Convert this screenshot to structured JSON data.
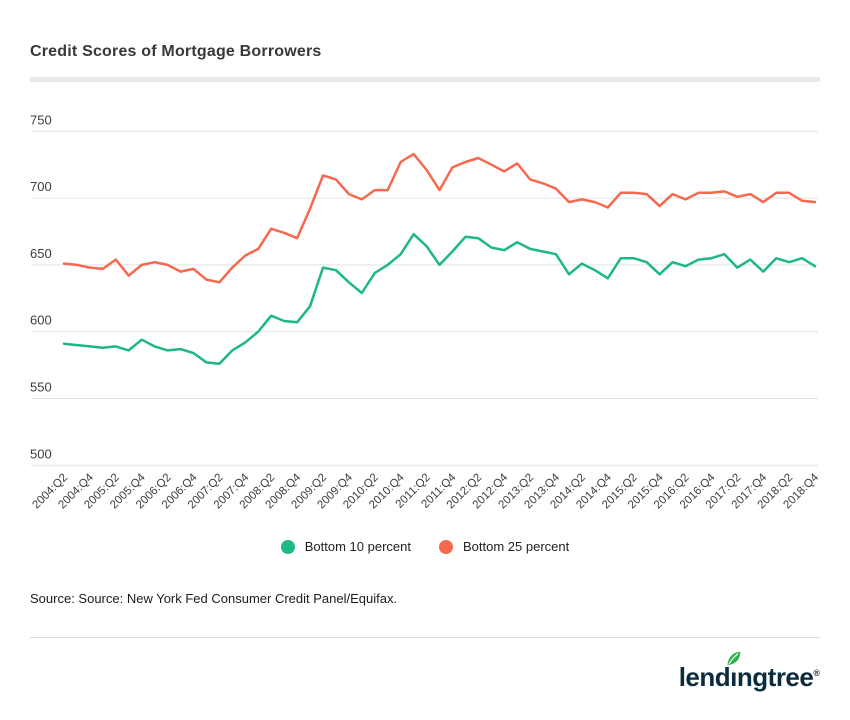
{
  "header": {
    "title": "Credit Scores of Mortgage Borrowers"
  },
  "chart_data": {
    "type": "line",
    "title": "Credit Scores of Mortgage Borrowers",
    "categories": [
      "2004:Q2",
      "2004:Q3",
      "2004:Q4",
      "2005:Q1",
      "2005:Q2",
      "2005:Q3",
      "2005:Q4",
      "2006:Q1",
      "2006:Q2",
      "2006:Q3",
      "2006:Q4",
      "2007:Q1",
      "2007:Q2",
      "2007:Q3",
      "2007:Q4",
      "2008:Q1",
      "2008:Q2",
      "2008:Q3",
      "2008:Q4",
      "2009:Q1",
      "2009:Q2",
      "2009:Q3",
      "2009:Q4",
      "2010:Q1",
      "2010:Q2",
      "2010:Q3",
      "2010:Q4",
      "2011:Q1",
      "2011:Q2",
      "2011:Q3",
      "2011:Q4",
      "2012:Q1",
      "2012:Q2",
      "2012:Q3",
      "2012:Q4",
      "2013:Q1",
      "2013:Q2",
      "2013:Q3",
      "2013:Q4",
      "2014:Q1",
      "2014:Q2",
      "2014:Q3",
      "2014:Q4",
      "2015:Q1",
      "2015:Q2",
      "2015:Q3",
      "2015:Q4",
      "2016:Q1",
      "2016:Q2",
      "2016:Q3",
      "2016:Q4",
      "2017:Q1",
      "2017:Q2",
      "2017:Q3",
      "2017:Q4",
      "2018:Q1",
      "2018:Q2",
      "2018:Q3",
      "2018:Q4"
    ],
    "x_tick_labels": [
      "2004:Q2",
      "2004:Q4",
      "2005:Q2",
      "2005:Q4",
      "2006:Q2",
      "2006:Q4",
      "2007:Q2",
      "2007:Q4",
      "2008:Q2",
      "2008:Q4",
      "2009:Q2",
      "2009:Q4",
      "2010:Q2",
      "2010:Q4",
      "2011:Q2",
      "2011:Q4",
      "2012:Q2",
      "2012:Q4",
      "2013:Q2",
      "2013:Q4",
      "2014:Q2",
      "2014:Q4",
      "2015:Q2",
      "2015:Q4",
      "2016:Q2",
      "2016:Q4",
      "2017:Q2",
      "2017:Q4",
      "2018:Q2",
      "2018:Q4"
    ],
    "series": [
      {
        "name": "Bottom 10 percent",
        "color": "#1db981",
        "values": [
          591,
          590,
          589,
          588,
          589,
          586,
          594,
          589,
          586,
          587,
          584,
          577,
          576,
          586,
          592,
          600,
          612,
          608,
          607,
          619,
          648,
          646,
          637,
          629,
          644,
          650,
          658,
          673,
          664,
          650,
          660,
          671,
          670,
          663,
          661,
          667,
          662,
          660,
          658,
          643,
          651,
          646,
          640,
          655,
          655,
          652,
          643,
          652,
          649,
          654,
          655,
          658,
          648,
          654,
          645,
          655,
          652,
          655,
          649
        ]
      },
      {
        "name": "Bottom 25 percent",
        "color": "#f5694d",
        "values": [
          651,
          650,
          648,
          647,
          654,
          642,
          650,
          652,
          650,
          645,
          647,
          639,
          637,
          648,
          657,
          662,
          677,
          674,
          670,
          692,
          717,
          714,
          703,
          699,
          706,
          706,
          727,
          733,
          721,
          706,
          723,
          727,
          730,
          725,
          720,
          726,
          714,
          711,
          707,
          697,
          699,
          697,
          693,
          704,
          704,
          703,
          694,
          703,
          699,
          704,
          704,
          705,
          701,
          703,
          697,
          704,
          704,
          698,
          697
        ]
      }
    ],
    "y_ticks": [
      500,
      550,
      600,
      650,
      700,
      750
    ],
    "ylim": [
      500,
      750
    ],
    "xlabel": "",
    "ylabel": "",
    "grid": "horizontal",
    "legend_position": "bottom-center"
  },
  "legend": {
    "items": [
      {
        "label": "Bottom 10 percent",
        "color": "#1db981"
      },
      {
        "label": "Bottom 25 percent",
        "color": "#f5694d"
      }
    ]
  },
  "source": {
    "text": "Source: Source: New York Fed Consumer Credit Panel/Equifax."
  },
  "footer": {
    "logo": {
      "text_before_leaf": "lend",
      "dotless_i": "ı",
      "text_after_leaf": "ngtree",
      "registered_mark": "®"
    }
  },
  "colors": {
    "series_green": "#1db981",
    "series_orange": "#f5694d",
    "gridline": "#e3e3e3",
    "axis_text": "#3d3d3d",
    "title_text": "#383838",
    "logo_navy": "#0d2b3e",
    "logo_leaf_green": "#2eb44b"
  }
}
